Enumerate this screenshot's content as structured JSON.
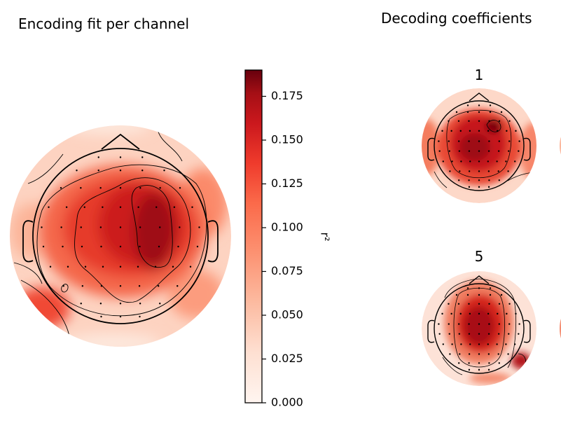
{
  "left_panel": {
    "title": "Encoding fit per channel"
  },
  "right_panel": {
    "title": "Decoding coefficients",
    "subplot_labels": [
      "1",
      "5"
    ]
  },
  "colorbar": {
    "label": "r²",
    "ticks": [
      "0.000",
      "0.025",
      "0.050",
      "0.075",
      "0.100",
      "0.125",
      "0.150",
      "0.175"
    ]
  },
  "colors": {
    "low": "#fff5f0",
    "mid": "#fb6a4a",
    "high": "#67000d"
  },
  "chart_data": [
    {
      "type": "heatmap",
      "title": "Encoding fit per channel",
      "colorbar_label": "r²",
      "vlim": [
        0,
        0.19
      ],
      "colorbar_ticks": [
        0.0,
        0.025,
        0.05,
        0.075,
        0.1,
        0.125,
        0.15,
        0.175
      ],
      "colormap": "Reds"
    },
    {
      "type": "heatmap",
      "title": "Decoding coefficients",
      "panels": [
        "1",
        "5"
      ],
      "colormap": "Reds"
    }
  ]
}
